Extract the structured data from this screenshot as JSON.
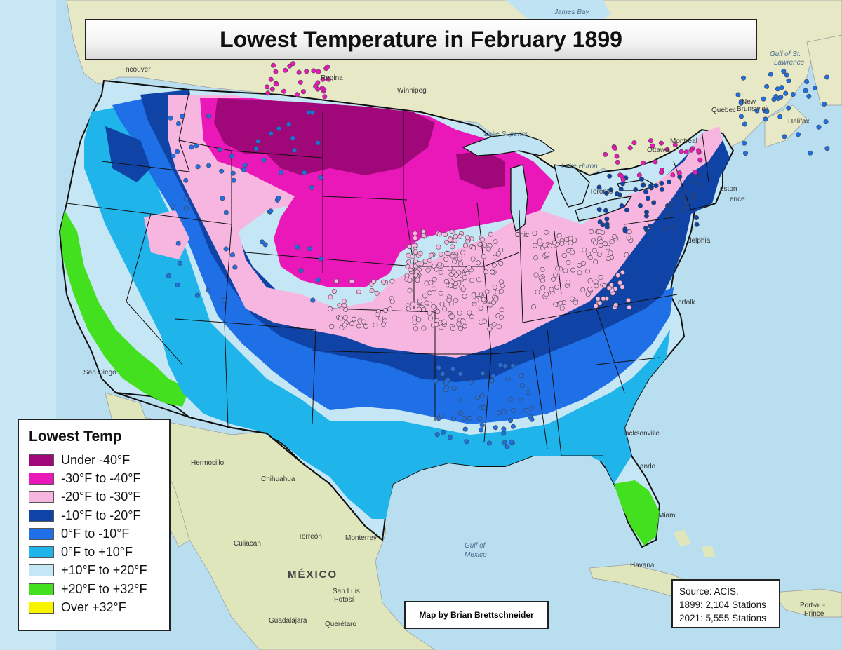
{
  "title": "Lowest Temperature in February 1899",
  "legend": {
    "title": "Lowest Temp",
    "items": [
      {
        "label": "Under -40°F",
        "color": "#a0087a"
      },
      {
        "label": "-30°F to -40°F",
        "color": "#ea18b8"
      },
      {
        "label": "-20°F to -30°F",
        "color": "#f7b6e0"
      },
      {
        "label": "-10°F to -20°F",
        "color": "#0f43a6"
      },
      {
        "label": "0°F to -10°F",
        "color": "#1f6fe6"
      },
      {
        "label": "0°F to +10°F",
        "color": "#1fb4ea"
      },
      {
        "label": "+10°F to +20°F",
        "color": "#c5e6f5"
      },
      {
        "label": "+20°F to +32°F",
        "color": "#42e01e"
      },
      {
        "label": "Over +32°F",
        "color": "#f8f400"
      }
    ]
  },
  "credit": "Map by Brian Brettschneider",
  "source": {
    "line1": "Source: ACIS.",
    "line2": "1899: 2,104 Stations",
    "line3": "2021: 5,555 Stations"
  },
  "places": {
    "san_diego": "San Diego",
    "hermosillo": "Hermosillo",
    "chihuahua": "Chihuahua",
    "culiacan": "Culiacan",
    "torreon": "Torreón",
    "monterrey": "Monterrey",
    "mexico": "MÉXICO",
    "san_luis_potosi_1": "San Luis",
    "san_luis_potosi_2": "Potosí",
    "guadalajara": "Guadalajara",
    "queretaro": "Querétaro",
    "gulf_1": "Gulf of",
    "gulf_2": "Mexico",
    "havana": "Havana",
    "miami": "Miami",
    "jacksonville": "Jacksonville",
    "orlando": "ando",
    "norfolk": "orfolk",
    "philadelphia": "delphia",
    "boston": "oston",
    "providence": "ence",
    "ottawa": "Ottawa",
    "montreal": "Montreal",
    "toronto": "Toronto",
    "quebec": "Quebec",
    "halifax": "Halifax",
    "gulf_st_lawrence_1": "Gulf of St.",
    "gulf_st_lawrence_2": "Lawrence",
    "winnipeg": "Winnipeg",
    "regina": "Regina",
    "vancouver": "ncouver",
    "chicago": "Chic",
    "lake_superior": "Lake Superior",
    "lake_huron": "Lake Huron",
    "new_brunswick_1": "New",
    "new_brunswick_2": "Brunswick",
    "port_au_prince_1": "Port-au-",
    "port_au_prince_2": "Prince",
    "james_bay": "James Bay"
  },
  "colors": {
    "ocean": "#bfe3f2",
    "ocean_deep": "#9fd3ea",
    "land": "#ecebcf",
    "land_green": "#cfe0b5",
    "border": "#111111"
  }
}
